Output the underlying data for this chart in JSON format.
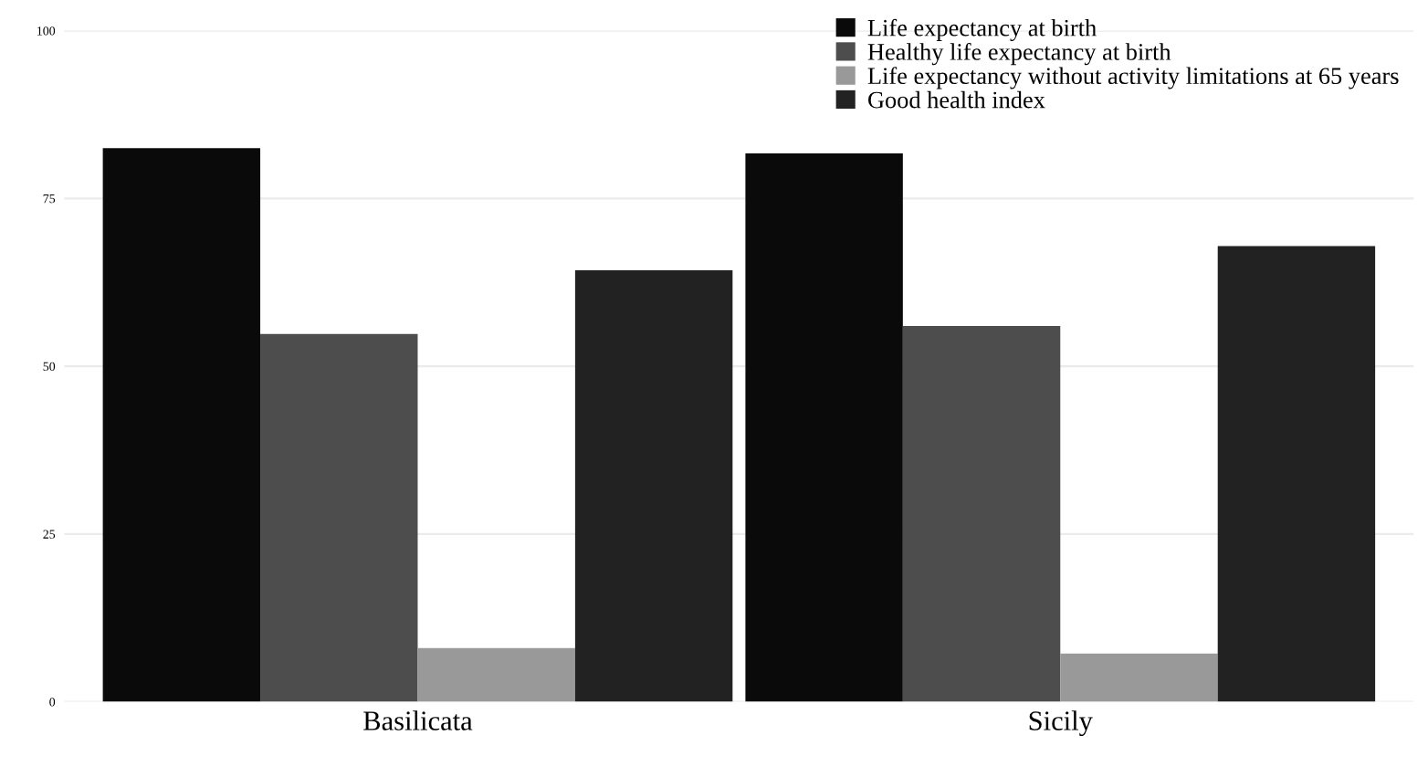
{
  "chart_data": {
    "type": "bar",
    "categories": [
      "Basilicata",
      "Sicily"
    ],
    "series": [
      {
        "name": "Life expectancy at birth",
        "color": "#0a0a0a",
        "values": [
          82.5,
          81.7
        ]
      },
      {
        "name": "Healthy life expectancy at birth",
        "color": "#4d4d4d",
        "values": [
          54.8,
          56.0
        ]
      },
      {
        "name": "Life expectancy without activity limitations at 65 years",
        "color": "#999999",
        "values": [
          8.0,
          7.2
        ]
      },
      {
        "name": "Good health index",
        "color": "#222222",
        "values": [
          64.3,
          67.9
        ]
      }
    ],
    "ylim": [
      0,
      100
    ],
    "yticks": [
      0,
      25,
      50,
      75,
      100
    ],
    "grid": "y",
    "legend": "top right"
  }
}
